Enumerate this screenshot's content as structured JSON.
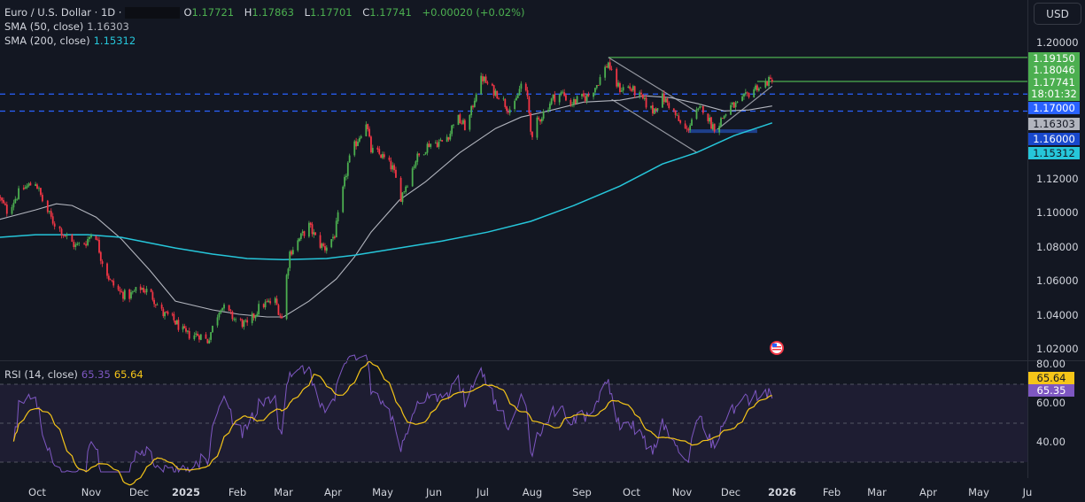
{
  "header": {
    "symbol": "Euro / U.S. Dollar · 1D ·",
    "o_label": "O",
    "o": "1.17721",
    "h_label": "H",
    "h": "1.17863",
    "l_label": "L",
    "l": "1.17701",
    "c_label": "C",
    "c": "1.17741",
    "change": "+0.00020 (+0.02%)",
    "sma50_label": "SMA (50, close)",
    "sma50_value": "1.16303",
    "sma200_label": "SMA (200, close)",
    "sma200_value": "1.15312",
    "rsi_label": "RSI (14, close)",
    "rsi_value": "65.35",
    "rsi_ma_value": "65.64"
  },
  "currency_button": "USD",
  "price_axis": {
    "ticks": [
      "1.20000",
      "1.12000",
      "1.10000",
      "1.08000",
      "1.06000",
      "1.04000",
      "1.02000"
    ],
    "tags": [
      {
        "text": "1.19150",
        "bg": "#4caf50",
        "fg": "#ffffff"
      },
      {
        "text": "1.18046",
        "bg": "#4caf50",
        "fg": "#ffffff"
      },
      {
        "text": "1.17741",
        "sub": "18:01:32",
        "bg": "#4caf50",
        "fg": "#ffffff"
      },
      {
        "text": "1.17000",
        "bg": "#2962ff",
        "fg": "#ffffff"
      },
      {
        "text": "1.16303",
        "bg": "#b2b5be",
        "fg": "#131722"
      },
      {
        "text": "1.16000",
        "bg": "#1848cc",
        "fg": "#ffffff"
      },
      {
        "text": "1.15312",
        "bg": "#26c6da",
        "fg": "#131722"
      }
    ]
  },
  "rsi_axis": {
    "ticks": [
      "80.00",
      "60.00",
      "40.00"
    ],
    "tags": [
      {
        "text": "65.64",
        "bg": "#f5c518",
        "fg": "#131722"
      },
      {
        "text": "65.35",
        "bg": "#7e57c2",
        "fg": "#ffffff"
      }
    ]
  },
  "time_axis": {
    "labels": [
      {
        "text": "Oct",
        "date": "2024-10-01"
      },
      {
        "text": "Nov",
        "date": "2024-11-01"
      },
      {
        "text": "Dec",
        "date": "2024-12-01"
      },
      {
        "text": "2025",
        "date": "2025-01-01",
        "bold": true
      },
      {
        "text": "Feb",
        "date": "2025-02-01"
      },
      {
        "text": "Mar",
        "date": "2025-03-01"
      },
      {
        "text": "Apr",
        "date": "2025-04-01"
      },
      {
        "text": "May",
        "date": "2025-05-01"
      },
      {
        "text": "Jun",
        "date": "2025-06-01"
      },
      {
        "text": "Jul",
        "date": "2025-07-01"
      },
      {
        "text": "Aug",
        "date": "2025-08-01"
      },
      {
        "text": "Sep",
        "date": "2025-09-01"
      },
      {
        "text": "Oct",
        "date": "2025-10-01"
      },
      {
        "text": "Nov",
        "date": "2025-11-01"
      },
      {
        "text": "Dec",
        "date": "2025-12-01"
      },
      {
        "text": "2026",
        "date": "2026-01-01",
        "bold": true
      },
      {
        "text": "Feb",
        "date": "2026-02-01"
      },
      {
        "text": "Mar",
        "date": "2026-03-01"
      },
      {
        "text": "Apr",
        "date": "2026-04-01"
      },
      {
        "text": "May",
        "date": "2026-05-01"
      },
      {
        "text": "Ju",
        "date": "2026-06-01"
      }
    ]
  },
  "colors": {
    "background": "#131722",
    "up": "#4caf50",
    "down": "#f23645",
    "sma50": "#b2b5be",
    "sma200": "#26c6da",
    "rsi": "#7e57c2",
    "rsi_ma": "#f5c518",
    "level": "#2962ff",
    "drawing_green": "#4caf50",
    "drawing_line": "#9598a1",
    "zone": "#1e3f8a"
  },
  "chart_data": {
    "type": "candlestick",
    "title": "Euro / U.S. Dollar · 1D",
    "ylim": [
      1.015,
      1.205
    ],
    "rsi_ylim": [
      25,
      85
    ],
    "grid": false,
    "close_path": [
      [
        "2024-09-08",
        1.1098
      ],
      [
        "2024-09-13",
        1.1015
      ],
      [
        "2024-09-21",
        1.1134
      ],
      [
        "2024-09-30",
        1.1186
      ],
      [
        "2024-10-05",
        1.1046
      ],
      [
        "2024-10-10",
        1.0953
      ],
      [
        "2024-10-18",
        1.0859
      ],
      [
        "2024-10-23",
        1.0807
      ],
      [
        "2024-10-29",
        1.0833
      ],
      [
        "2024-11-03",
        1.0911
      ],
      [
        "2024-11-07",
        1.0745
      ],
      [
        "2024-11-13",
        1.06
      ],
      [
        "2024-11-19",
        1.0537
      ],
      [
        "2024-11-24",
        1.0511
      ],
      [
        "2024-12-02",
        1.0563
      ],
      [
        "2024-12-08",
        1.0537
      ],
      [
        "2024-12-17",
        1.0408
      ],
      [
        "2024-12-22",
        1.0392
      ],
      [
        "2025-01-01",
        1.0288
      ],
      [
        "2025-01-09",
        1.0288
      ],
      [
        "2025-01-14",
        1.0252
      ],
      [
        "2025-01-22",
        1.046
      ],
      [
        "2025-01-30",
        1.0382
      ],
      [
        "2025-02-07",
        1.034
      ],
      [
        "2025-02-15",
        1.046
      ],
      [
        "2025-02-24",
        1.0485
      ],
      [
        "2025-02-28",
        1.0382
      ],
      [
        "2025-03-02",
        1.0563
      ],
      [
        "2025-03-05",
        1.0771
      ],
      [
        "2025-03-09",
        1.0823
      ],
      [
        "2025-03-17",
        1.0927
      ],
      [
        "2025-03-23",
        1.0823
      ],
      [
        "2025-03-27",
        1.0797
      ],
      [
        "2025-04-02",
        1.0875
      ],
      [
        "2025-04-06",
        1.1082
      ],
      [
        "2025-04-10",
        1.129
      ],
      [
        "2025-04-14",
        1.1394
      ],
      [
        "2025-04-21",
        1.1539
      ],
      [
        "2025-04-24",
        1.1368
      ],
      [
        "2025-04-30",
        1.1342
      ],
      [
        "2025-05-07",
        1.1264
      ],
      [
        "2025-05-12",
        1.1098
      ],
      [
        "2025-05-16",
        1.1186
      ],
      [
        "2025-05-21",
        1.1316
      ],
      [
        "2025-05-29",
        1.1409
      ],
      [
        "2025-06-06",
        1.142
      ],
      [
        "2025-06-11",
        1.1472
      ],
      [
        "2025-06-14",
        1.1575
      ],
      [
        "2025-06-21",
        1.1498
      ],
      [
        "2025-06-24",
        1.1601
      ],
      [
        "2025-06-28",
        1.1757
      ],
      [
        "2025-07-01",
        1.1793
      ],
      [
        "2025-07-06",
        1.1731
      ],
      [
        "2025-07-12",
        1.169
      ],
      [
        "2025-07-16",
        1.1627
      ],
      [
        "2025-07-20",
        1.1601
      ],
      [
        "2025-07-25",
        1.1757
      ],
      [
        "2025-07-29",
        1.1679
      ],
      [
        "2025-08-01",
        1.142
      ],
      [
        "2025-08-03",
        1.1523
      ],
      [
        "2025-08-07",
        1.1575
      ],
      [
        "2025-08-14",
        1.1679
      ],
      [
        "2025-08-20",
        1.1705
      ],
      [
        "2025-08-25",
        1.1643
      ],
      [
        "2025-08-30",
        1.1669
      ],
      [
        "2025-09-05",
        1.169
      ],
      [
        "2025-09-10",
        1.1757
      ],
      [
        "2025-09-17",
        1.1887
      ],
      [
        "2025-09-20",
        1.1783
      ],
      [
        "2025-09-24",
        1.1731
      ],
      [
        "2025-09-29",
        1.1741
      ],
      [
        "2025-10-04",
        1.1705
      ],
      [
        "2025-10-09",
        1.1653
      ],
      [
        "2025-10-14",
        1.1601
      ],
      [
        "2025-10-20",
        1.1679
      ],
      [
        "2025-10-25",
        1.1627
      ],
      [
        "2025-10-31",
        1.1523
      ],
      [
        "2025-11-04",
        1.1482
      ],
      [
        "2025-11-08",
        1.1575
      ],
      [
        "2025-11-14",
        1.1617
      ],
      [
        "2025-11-19",
        1.1523
      ],
      [
        "2025-11-22",
        1.1498
      ],
      [
        "2025-11-25",
        1.1549
      ],
      [
        "2025-12-01",
        1.1627
      ],
      [
        "2025-12-06",
        1.1638
      ],
      [
        "2025-12-12",
        1.1705
      ],
      [
        "2025-12-17",
        1.1747
      ],
      [
        "2025-12-19",
        1.1731
      ],
      [
        "2025-12-23",
        1.1773
      ],
      [
        "2025-12-26",
        1.1774
      ]
    ],
    "series": [
      {
        "name": "SMA (50, close)",
        "values": [
          [
            "2024-09-08",
            1.0963
          ],
          [
            "2024-09-30",
            1.102
          ],
          [
            "2024-10-12",
            1.1056
          ],
          [
            "2024-10-21",
            1.1046
          ],
          [
            "2024-11-04",
            1.0978
          ],
          [
            "2024-11-20",
            1.0849
          ],
          [
            "2024-12-08",
            1.0667
          ],
          [
            "2024-12-25",
            1.0485
          ],
          [
            "2025-01-17",
            1.0434
          ],
          [
            "2025-02-02",
            1.0408
          ],
          [
            "2025-02-19",
            1.0392
          ],
          [
            "2025-03-01",
            1.0392
          ],
          [
            "2025-03-17",
            1.0485
          ],
          [
            "2025-04-03",
            1.0615
          ],
          [
            "2025-04-14",
            1.0745
          ],
          [
            "2025-04-24",
            1.089
          ],
          [
            "2025-05-11",
            1.1077
          ],
          [
            "2025-05-27",
            1.1186
          ],
          [
            "2025-06-17",
            1.1357
          ],
          [
            "2025-07-09",
            1.1498
          ],
          [
            "2025-07-25",
            1.1565
          ],
          [
            "2025-08-11",
            1.1601
          ],
          [
            "2025-09-02",
            1.1653
          ],
          [
            "2025-09-24",
            1.1664
          ],
          [
            "2025-10-09",
            1.169
          ],
          [
            "2025-10-25",
            1.1679
          ],
          [
            "2025-11-11",
            1.1643
          ],
          [
            "2025-11-27",
            1.1601
          ],
          [
            "2025-12-12",
            1.1607
          ],
          [
            "2025-12-26",
            1.163
          ]
        ]
      },
      {
        "name": "SMA (200, close)",
        "values": [
          [
            "2024-09-08",
            1.0859
          ],
          [
            "2024-09-30",
            1.0875
          ],
          [
            "2024-10-30",
            1.0875
          ],
          [
            "2024-11-20",
            1.0859
          ],
          [
            "2024-12-25",
            1.0797
          ],
          [
            "2025-01-17",
            1.0761
          ],
          [
            "2025-02-07",
            1.0735
          ],
          [
            "2025-03-01",
            1.0729
          ],
          [
            "2025-03-28",
            1.0735
          ],
          [
            "2025-04-14",
            1.0755
          ],
          [
            "2025-05-11",
            1.0797
          ],
          [
            "2025-06-06",
            1.0838
          ],
          [
            "2025-07-04",
            1.089
          ],
          [
            "2025-07-31",
            1.0953
          ],
          [
            "2025-08-27",
            1.1046
          ],
          [
            "2025-09-24",
            1.116
          ],
          [
            "2025-10-20",
            1.129
          ],
          [
            "2025-11-10",
            1.1357
          ],
          [
            "2025-12-03",
            1.1456
          ],
          [
            "2025-12-26",
            1.1531
          ]
        ]
      }
    ],
    "levels": [
      1.17,
      1.16
    ],
    "drawings": {
      "horizontal_rays": [
        [
          "2025-09-17",
          1.1915
        ],
        [
          "2025-12-17",
          1.17741
        ]
      ],
      "trend_lines": [
        [
          [
            "2025-09-17",
            1.1915
          ],
          [
            "2025-11-10",
            1.1596
          ]
        ],
        [
          [
            "2025-09-19",
            1.1669
          ],
          [
            "2025-11-10",
            1.1358
          ]
        ],
        [
          [
            "2025-11-22",
            1.1487
          ],
          [
            "2025-12-26",
            1.1747
          ]
        ]
      ],
      "zone": [
        [
          "2025-11-05",
          1.1493
        ],
        [
          "2025-12-17",
          1.1472
        ]
      ]
    },
    "event_marker": {
      "icon": "us-flag-icon",
      "date": "2025-12-26"
    }
  }
}
